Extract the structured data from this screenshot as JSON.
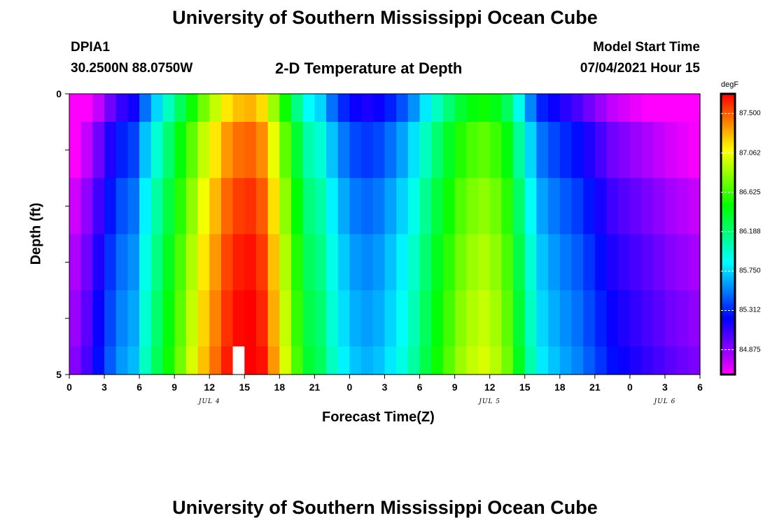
{
  "header": {
    "title_top": "University of Southern Mississippi Ocean Cube",
    "title_bottom": "University of Southern Mississippi Ocean Cube",
    "station": "DPIA1",
    "location": "30.2500N  88.0750W",
    "subtitle": "2-D Temperature at Depth",
    "model_label": "Model Start Time",
    "model_time": "07/04/2021 Hour 15"
  },
  "chart_data": {
    "type": "heatmap",
    "title": "2-D Temperature at Depth",
    "xlabel": "Forecast Time(Z)",
    "ylabel": "Depth (ft)",
    "x_range_hours": [
      0,
      54
    ],
    "y_range_ft": [
      0,
      5
    ],
    "x_tick_labels": [
      "0",
      "3",
      "6",
      "9",
      "12",
      "15",
      "18",
      "21",
      "0",
      "3",
      "6",
      "9",
      "12",
      "15",
      "18",
      "21",
      "0",
      "3",
      "6"
    ],
    "y_tick_labels": [
      "0",
      "5"
    ],
    "date_labels": [
      {
        "text": "JUL 4",
        "hour": 12
      },
      {
        "text": "JUL 5",
        "hour": 36
      },
      {
        "text": "JUL 6",
        "hour": 51
      }
    ],
    "colorbar": {
      "units": "degF",
      "min": 84.6,
      "max": 87.72,
      "tick_values": [
        87.5,
        87.062,
        86.625,
        86.188,
        85.75,
        85.312,
        84.875
      ],
      "tick_labels": [
        "87.500",
        "87.062",
        "86.625",
        "86.188",
        "85.750",
        "85.312",
        "84.875"
      ]
    },
    "depth_levels_ft": [
      0,
      1,
      2,
      3,
      4,
      5
    ],
    "hours": [
      0,
      1,
      2,
      3,
      4,
      5,
      6,
      7,
      8,
      9,
      10,
      11,
      12,
      13,
      14,
      15,
      16,
      17,
      18,
      19,
      20,
      21,
      22,
      23,
      24,
      25,
      26,
      27,
      28,
      29,
      30,
      31,
      32,
      33,
      34,
      35,
      36,
      37,
      38,
      39,
      40,
      41,
      42,
      43,
      44,
      45,
      46,
      47,
      48,
      49,
      50,
      51,
      52,
      53,
      54
    ],
    "surface_temp_degF": [
      84.6,
      84.75,
      84.95,
      85.15,
      85.3,
      85.38,
      85.7,
      85.95,
      86.2,
      86.45,
      86.7,
      86.95,
      87.15,
      87.35,
      87.45,
      87.48,
      87.38,
      87.05,
      86.7,
      86.35,
      86.05,
      85.95,
      85.7,
      85.52,
      85.4,
      85.36,
      85.4,
      85.5,
      85.62,
      85.78,
      86.0,
      86.2,
      86.38,
      86.55,
      86.65,
      86.7,
      86.62,
      86.45,
      86.1,
      85.75,
      85.5,
      85.4,
      85.32,
      85.25,
      85.15,
      85.05,
      84.95,
      84.9,
      84.85,
      84.8,
      84.75,
      84.7,
      84.66,
      84.62,
      84.6
    ],
    "depth_offset_degF": [
      -0.2,
      0.0,
      0.12,
      0.2,
      0.25,
      0.3
    ],
    "missing_cells": [
      {
        "hour": 14,
        "depth_level": 5
      }
    ]
  }
}
